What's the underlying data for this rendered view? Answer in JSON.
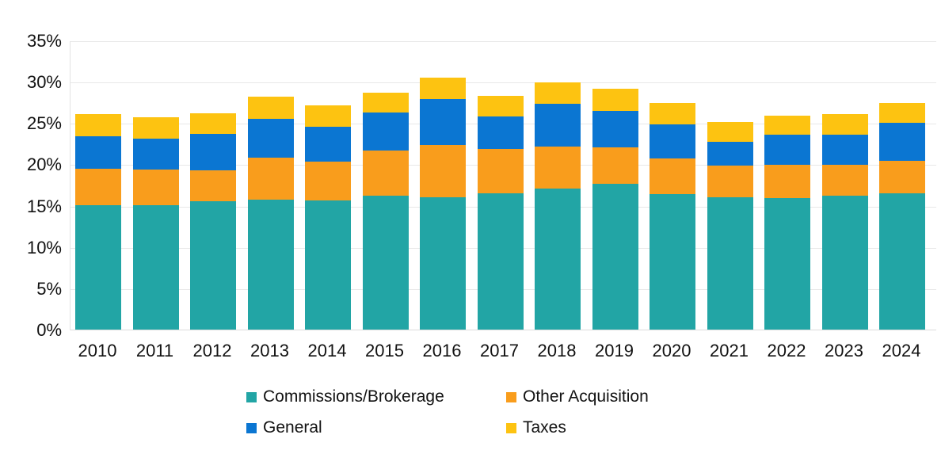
{
  "chart_data": {
    "type": "bar",
    "stacked": true,
    "title": "",
    "xlabel": "",
    "ylabel": "",
    "unit": "%",
    "grid": true,
    "legend_position": "bottom",
    "ylim": [
      0,
      35
    ],
    "y_tick_step": 5,
    "y_tick_labels": [
      "0%",
      "5%",
      "10%",
      "15%",
      "20%",
      "25%",
      "30%",
      "35%"
    ],
    "categories": [
      "2010",
      "2011",
      "2012",
      "2013",
      "2014",
      "2015",
      "2016",
      "2017",
      "2018",
      "2019",
      "2020",
      "2021",
      "2022",
      "2023",
      "2024"
    ],
    "series": [
      {
        "name": "Commissions/Brokerage",
        "color": "#22A5A5",
        "values": [
          15.1,
          15.1,
          15.5,
          15.7,
          15.6,
          16.2,
          16.0,
          16.5,
          17.1,
          17.6,
          16.4,
          16.0,
          15.9,
          16.2,
          16.5
        ]
      },
      {
        "name": "Other Acquisition",
        "color": "#F99D1C",
        "values": [
          4.4,
          4.3,
          3.8,
          5.1,
          4.7,
          5.5,
          6.3,
          5.4,
          5.1,
          4.5,
          4.3,
          3.9,
          4.0,
          3.7,
          3.9
        ]
      },
      {
        "name": "General",
        "color": "#0B76D2",
        "values": [
          3.9,
          3.7,
          4.4,
          4.7,
          4.3,
          4.6,
          5.6,
          3.9,
          5.1,
          4.4,
          4.1,
          2.8,
          3.7,
          3.7,
          4.6
        ]
      },
      {
        "name": "Taxes",
        "color": "#FDC311",
        "values": [
          2.7,
          2.6,
          2.5,
          2.7,
          2.5,
          2.4,
          2.6,
          2.5,
          2.6,
          2.7,
          2.6,
          2.4,
          2.3,
          2.5,
          2.4
        ]
      }
    ],
    "totals": [
      26.1,
      25.7,
      26.2,
      28.2,
      27.1,
      28.7,
      30.5,
      28.3,
      29.9,
      29.2,
      27.4,
      25.1,
      25.9,
      26.1,
      27.4
    ]
  },
  "colors": {
    "background": "#FFFFFF",
    "gridline": "#E8E8E8",
    "axis_text": "#121212"
  }
}
